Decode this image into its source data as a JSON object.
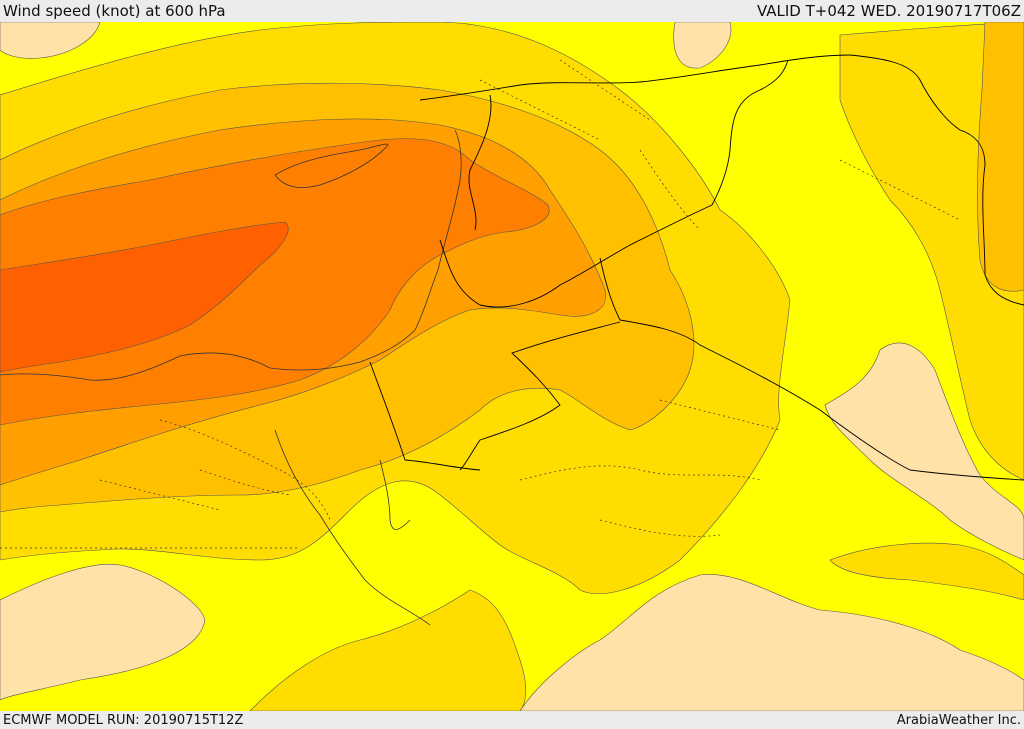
{
  "header": {
    "title": "Wind speed (knot) at 600 hPa",
    "valid": "VALID T+042 WED. 20190717T06Z"
  },
  "footer": {
    "model_run": "ECMWF MODEL RUN: 20190715T12Z",
    "credit": "ArabiaWeather Inc."
  },
  "colors": {
    "band_lightest": "#fee2a8",
    "band_1": "#ffff00",
    "band_2": "#ffdd00",
    "band_3": "#ffc000",
    "band_4": "#ffa000",
    "band_5": "#ff8000",
    "band_6": "#ff6000",
    "contour": "#555555",
    "border": "#000000"
  }
}
